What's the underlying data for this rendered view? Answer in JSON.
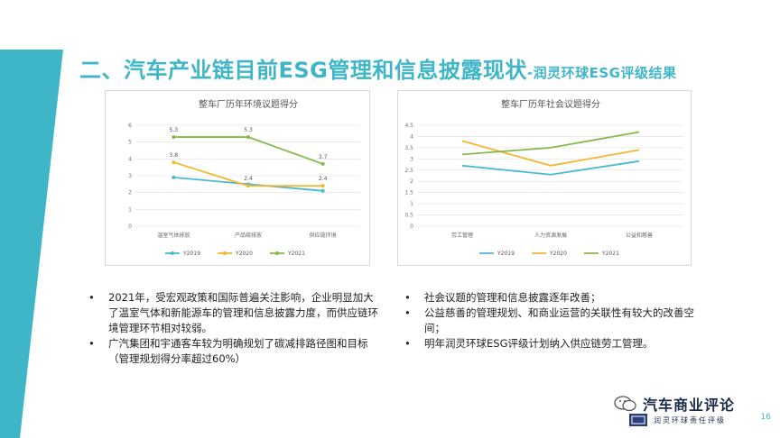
{
  "slide": {
    "title": "二、汽车产业链目前ESG管理和信息披露现状",
    "subtitle": "-润灵环球ESG评级结果",
    "page_number": "16",
    "accent_color": "#3fb6c8"
  },
  "chart_data": [
    {
      "type": "line",
      "title": "整车厂历年环境议题得分",
      "categories": [
        "温室气体排放",
        "产品碳排放",
        "供应链环境"
      ],
      "ylim": [
        0,
        6
      ],
      "yticks": [
        0,
        1,
        2,
        3,
        4,
        5,
        6
      ],
      "grid": true,
      "legend_position": "bottom",
      "series": [
        {
          "name": "Y2019",
          "color": "#4bb8d4",
          "values": [
            2.9,
            2.5,
            2.1
          ],
          "labels": [
            "",
            "",
            ""
          ]
        },
        {
          "name": "Y2020",
          "color": "#f5b731",
          "values": [
            3.8,
            2.4,
            2.4
          ],
          "labels": [
            "3.8",
            "2.4",
            "2.4"
          ]
        },
        {
          "name": "Y2021",
          "color": "#86b94a",
          "values": [
            5.3,
            5.3,
            3.7
          ],
          "labels": [
            "5.3",
            "5.3",
            "3.7"
          ]
        }
      ]
    },
    {
      "type": "line",
      "title": "整车厂历年社会议题得分",
      "categories": [
        "劳工管理",
        "人力资源发展",
        "公益和慈善"
      ],
      "ylim": [
        0,
        4.5
      ],
      "yticks": [
        0,
        0.5,
        1,
        1.5,
        2,
        2.5,
        3,
        3.5,
        4,
        4.5
      ],
      "grid": true,
      "legend_position": "bottom",
      "series": [
        {
          "name": "Y2019",
          "color": "#4bb8d4",
          "values": [
            2.7,
            2.3,
            2.9
          ]
        },
        {
          "name": "Y2020",
          "color": "#f5b731",
          "values": [
            3.8,
            2.7,
            3.4
          ]
        },
        {
          "name": "Y2021",
          "color": "#86b94a",
          "values": [
            3.2,
            3.5,
            4.2
          ]
        }
      ]
    }
  ],
  "bullets_left": [
    "2021年，受宏观政策和国际普遍关注影响，企业明显加大了温室气体和新能源车的管理和信息披露力度，而供应链环境管理环节相对较弱。",
    "广汽集团和宇通客车较为明确规划了碳减排路径图和目标（管理规划得分率超过60%）"
  ],
  "bullets_right": [
    "社会议题的管理和信息披露逐年改善；",
    "公益慈善的管理规划、和商业运营的关联性有较大的改善空间；",
    "明年润灵环球ESG评级计划纳入供应链劳工管理。"
  ],
  "bullet_symbol": "•",
  "logo": {
    "brand_text": "汽车商业评论",
    "sub_text": "润灵环球责任评级"
  }
}
